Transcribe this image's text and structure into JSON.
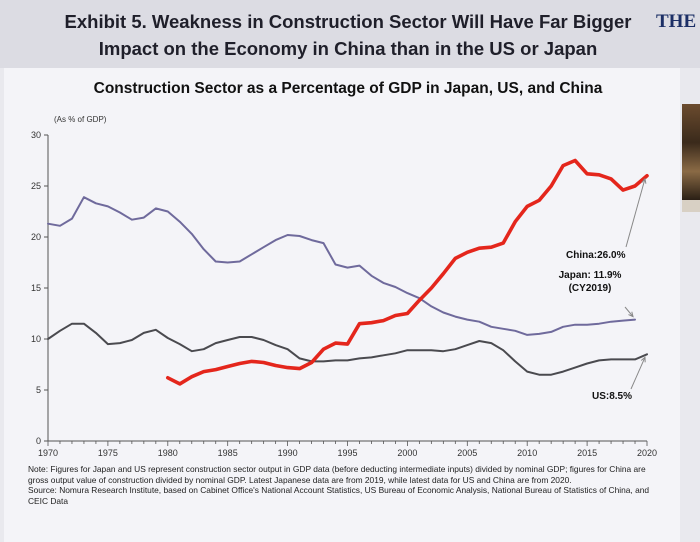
{
  "header": {
    "title_line1": "Exhibit 5. Weakness in Construction Sector Will Have Far Bigger",
    "title_line2": "Impact on the Economy in China than in the US or Japan",
    "brand_text": "THE",
    "brand_accent": "↗"
  },
  "footnote": {
    "note": "Note: Figures for Japan and US represent construction sector output in GDP data (before deducting intermediate inputs) divided by nominal GDP; figures for China are gross output value of construction divided by nominal GDP. Latest Japanese data are from 2019, while latest data for US and China are from 2020.",
    "source": "Source: Nomura Research Institute, based on Cabinet Office's National Account Statistics, US Bureau of Economic Analysis, National Bureau of Statistics of China, and CEIC Data"
  },
  "chart_data": {
    "type": "line",
    "title": "Construction Sector as a Percentage of GDP in Japan, US, and China",
    "ylabel": "(As % of GDP)",
    "xlim": [
      1970,
      2020
    ],
    "ylim": [
      0,
      30
    ],
    "xticks": [
      1970,
      1975,
      1980,
      1985,
      1990,
      1995,
      2000,
      2005,
      2010,
      2015,
      2020
    ],
    "yticks": [
      0,
      5,
      10,
      15,
      20,
      25,
      30
    ],
    "grid": false,
    "legend": "none",
    "series": [
      {
        "name": "Japan",
        "color": "#6f6a9c",
        "x": [
          1970,
          1971,
          1972,
          1973,
          1974,
          1975,
          1976,
          1977,
          1978,
          1979,
          1980,
          1981,
          1982,
          1983,
          1984,
          1985,
          1986,
          1987,
          1988,
          1989,
          1990,
          1991,
          1992,
          1993,
          1994,
          1995,
          1996,
          1997,
          1998,
          1999,
          2000,
          2001,
          2002,
          2003,
          2004,
          2005,
          2006,
          2007,
          2008,
          2009,
          2010,
          2011,
          2012,
          2013,
          2014,
          2015,
          2016,
          2017,
          2018,
          2019
        ],
        "values": [
          21.3,
          21.1,
          21.8,
          23.9,
          23.3,
          23.0,
          22.4,
          21.7,
          21.9,
          22.8,
          22.5,
          21.5,
          20.3,
          18.8,
          17.6,
          17.5,
          17.6,
          18.3,
          19.0,
          19.7,
          20.2,
          20.1,
          19.7,
          19.4,
          17.3,
          17.0,
          17.2,
          16.2,
          15.5,
          15.1,
          14.5,
          14.0,
          13.2,
          12.6,
          12.2,
          11.9,
          11.7,
          11.2,
          11.0,
          10.8,
          10.4,
          10.5,
          10.7,
          11.2,
          11.4,
          11.4,
          11.5,
          11.7,
          11.8,
          11.9
        ]
      },
      {
        "name": "US",
        "color": "#4a4a4f",
        "x": [
          1970,
          1971,
          1972,
          1973,
          1974,
          1975,
          1976,
          1977,
          1978,
          1979,
          1980,
          1981,
          1982,
          1983,
          1984,
          1985,
          1986,
          1987,
          1988,
          1989,
          1990,
          1991,
          1992,
          1993,
          1994,
          1995,
          1996,
          1997,
          1998,
          1999,
          2000,
          2001,
          2002,
          2003,
          2004,
          2005,
          2006,
          2007,
          2008,
          2009,
          2010,
          2011,
          2012,
          2013,
          2014,
          2015,
          2016,
          2017,
          2018,
          2019,
          2020
        ],
        "values": [
          10.0,
          10.8,
          11.5,
          11.5,
          10.6,
          9.5,
          9.6,
          9.9,
          10.6,
          10.9,
          10.1,
          9.5,
          8.8,
          9.0,
          9.6,
          9.9,
          10.2,
          10.2,
          9.9,
          9.4,
          9.0,
          8.1,
          7.8,
          7.8,
          7.9,
          7.9,
          8.1,
          8.2,
          8.4,
          8.6,
          8.9,
          8.9,
          8.9,
          8.8,
          9.0,
          9.4,
          9.8,
          9.6,
          8.9,
          7.8,
          6.8,
          6.5,
          6.5,
          6.8,
          7.2,
          7.6,
          7.9,
          8.0,
          8.0,
          8.0,
          8.5
        ]
      },
      {
        "name": "China",
        "color": "#e4261c",
        "x": [
          1980,
          1981,
          1982,
          1983,
          1984,
          1985,
          1986,
          1987,
          1988,
          1989,
          1990,
          1991,
          1992,
          1993,
          1994,
          1995,
          1996,
          1997,
          1998,
          1999,
          2000,
          2001,
          2002,
          2003,
          2004,
          2005,
          2006,
          2007,
          2008,
          2009,
          2010,
          2011,
          2012,
          2013,
          2014,
          2015,
          2016,
          2017,
          2018,
          2019,
          2020
        ],
        "values": [
          6.2,
          5.6,
          6.3,
          6.8,
          7.0,
          7.3,
          7.6,
          7.8,
          7.7,
          7.4,
          7.2,
          7.1,
          7.7,
          9.0,
          9.6,
          9.5,
          11.5,
          11.6,
          11.8,
          12.3,
          12.5,
          13.8,
          15.0,
          16.4,
          17.9,
          18.5,
          18.9,
          19.0,
          19.4,
          21.5,
          23.0,
          23.6,
          25.0,
          27.0,
          27.5,
          26.2,
          26.1,
          25.7,
          24.6,
          25.0,
          26.0
        ]
      }
    ],
    "annotations": [
      {
        "series": "China",
        "text": "China:26.0%"
      },
      {
        "series": "Japan",
        "text": "Japan: 11.9%",
        "text2": "(CY2019)"
      },
      {
        "series": "US",
        "text": "US:8.5%"
      }
    ]
  }
}
